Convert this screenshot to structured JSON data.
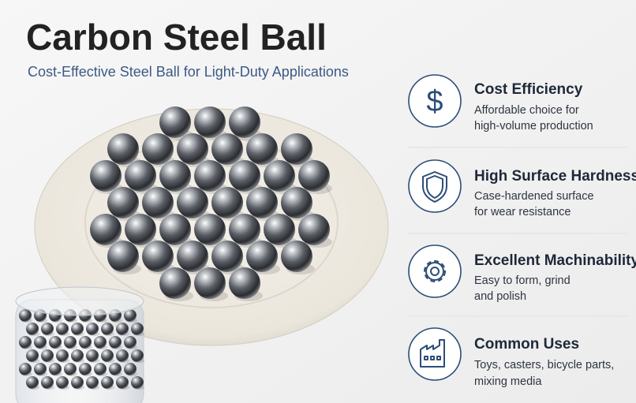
{
  "header": {
    "title": "Carbon Steel Ball",
    "subtitle": "Cost-Effective Steel Ball for Light-Duty Applications"
  },
  "features": [
    {
      "title": "Cost Efficiency",
      "lines": [
        "Affordable choice for",
        "high-volume production"
      ]
    },
    {
      "title": "High Surface Hardness",
      "lines": [
        "Case-hardened surface",
        "for wear resistance"
      ]
    },
    {
      "title": "Excellent Machinability",
      "lines": [
        "Easy to form, grind",
        "and polish"
      ]
    },
    {
      "title": "Common Uses",
      "lines": [
        "Toys, casters, bicycle parts,",
        "mixing media"
      ]
    }
  ]
}
